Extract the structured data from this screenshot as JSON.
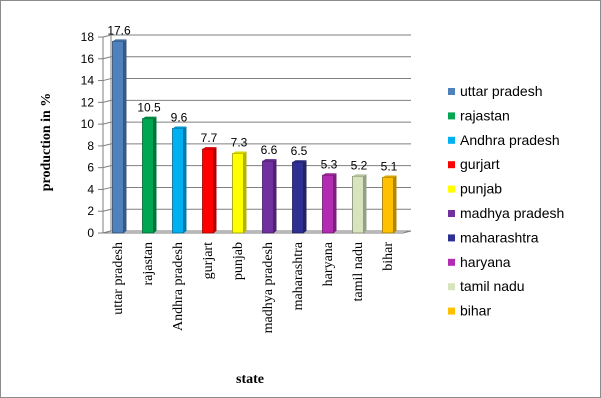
{
  "chart_data": {
    "type": "bar",
    "title": "",
    "xlabel": "state",
    "ylabel": "production in %",
    "ylim": [
      0,
      18
    ],
    "yticks": [
      0,
      2,
      4,
      6,
      8,
      10,
      12,
      14,
      16,
      18
    ],
    "grid": true,
    "legend_position": "right",
    "categories": [
      "uttar pradesh",
      "rajastan",
      "Andhra pradesh",
      "gurjart",
      "punjab",
      "madhya pradesh",
      "maharashtra",
      "haryana",
      "tamil nadu",
      "bihar"
    ],
    "values": [
      17.6,
      10.5,
      9.6,
      7.7,
      7.3,
      6.6,
      6.5,
      5.3,
      5.2,
      5.1
    ],
    "data_labels": [
      "17.6",
      "10.5",
      "9.6",
      "7.7",
      "7.3",
      "6.6",
      "6.5",
      "5.3",
      "5.2",
      "5.1"
    ],
    "legend": [
      "uttar pradesh",
      "rajastan",
      "Andhra pradesh",
      "gurjart",
      "punjab",
      "madhya pradesh",
      "maharashtra",
      "haryana",
      "tamil nadu",
      "bihar"
    ],
    "colors": [
      "#4f81bd",
      "#00a651",
      "#00b0f0",
      "#ff0000",
      "#ffff00",
      "#7030a0",
      "#2e3192",
      "#b32bb3",
      "#d7e4bd",
      "#ffc000"
    ]
  }
}
